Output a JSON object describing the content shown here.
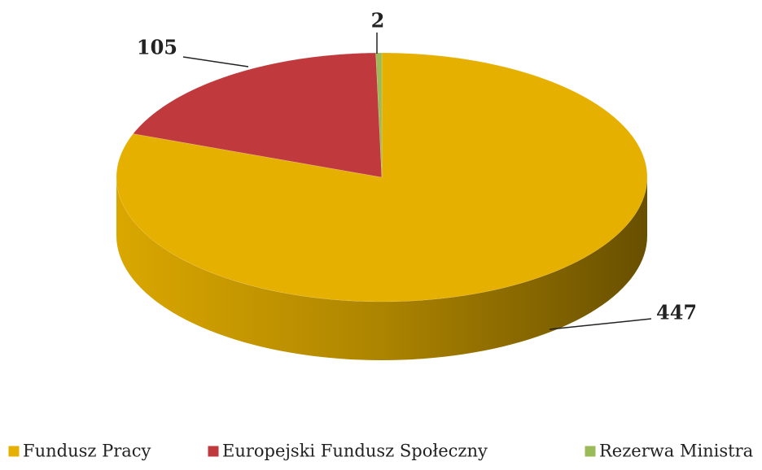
{
  "chart_data": {
    "type": "pie",
    "three_d": true,
    "categories": [
      "Fundusz Pracy",
      "Europejski Fundusz Społeczny",
      "Rezerwa Ministra"
    ],
    "values": [
      447,
      105,
      2
    ],
    "colors": [
      "#e6b000",
      "#c0393c",
      "#9bbb59"
    ],
    "legend": "bottom"
  }
}
